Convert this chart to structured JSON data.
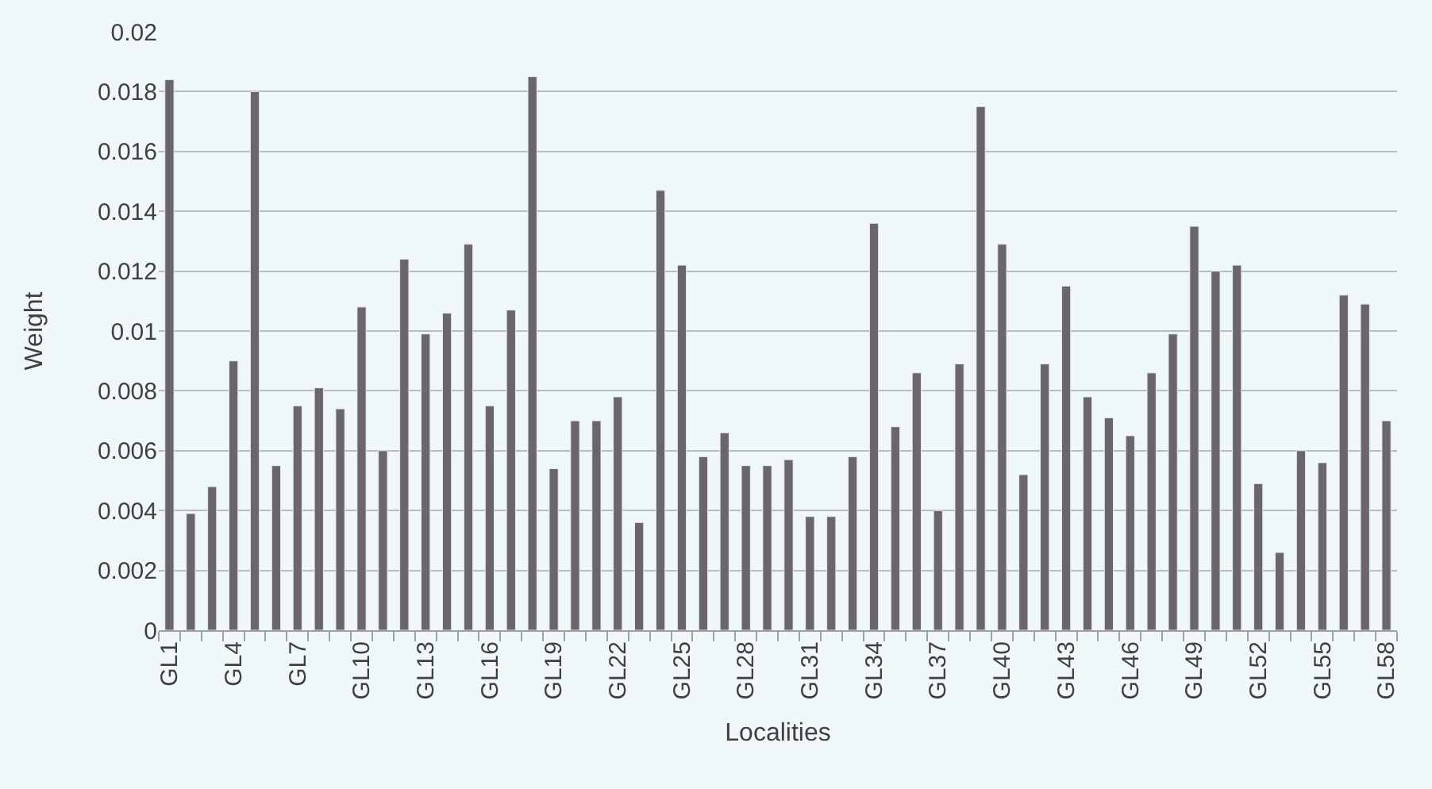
{
  "chart_data": {
    "type": "bar",
    "xlabel": "Localities",
    "ylabel": "Weight",
    "categories": [
      "GL1",
      null,
      null,
      "GL4",
      null,
      null,
      "GL7",
      null,
      null,
      "GL10",
      null,
      null,
      "GL13",
      null,
      null,
      "GL16",
      null,
      null,
      "GL19",
      null,
      null,
      "GL22",
      null,
      null,
      "GL25",
      null,
      null,
      "GL28",
      null,
      null,
      "GL31",
      null,
      null,
      "GL34",
      null,
      null,
      "GL37",
      null,
      null,
      "GL40",
      null,
      null,
      "GL43",
      null,
      null,
      "GL46",
      null,
      null,
      "GL49",
      null,
      null,
      "GL52",
      null,
      null,
      "GL55",
      null,
      null,
      "GL58"
    ],
    "values": [
      0.0184,
      0.0039,
      0.0048,
      0.009,
      0.018,
      0.0055,
      0.0075,
      0.0081,
      0.0074,
      0.0108,
      0.006,
      0.0124,
      0.0099,
      0.0106,
      0.0129,
      0.0075,
      0.0107,
      0.0185,
      0.0054,
      0.007,
      0.007,
      0.0078,
      0.0036,
      0.0147,
      0.0122,
      0.0058,
      0.0066,
      0.0055,
      0.0055,
      0.0057,
      0.0038,
      0.0038,
      0.0058,
      0.0136,
      0.0068,
      0.0086,
      0.004,
      0.0089,
      0.0175,
      0.0129,
      0.0052,
      0.0089,
      0.0115,
      0.0078,
      0.0071,
      0.0065,
      0.0086,
      0.0099,
      0.0135,
      0.012,
      0.0122,
      0.0049,
      0.0026,
      0.006,
      0.0056,
      0.0112,
      0.0109,
      0.007
    ],
    "color": "#6a6669",
    "ylim": [
      0,
      0.02
    ],
    "yticks": [
      "0",
      0.002,
      0.004,
      0.006,
      0.008,
      0.01,
      0.012,
      0.014,
      0.016,
      0.018,
      0.02
    ],
    "grid": "y",
    "legend": false
  }
}
